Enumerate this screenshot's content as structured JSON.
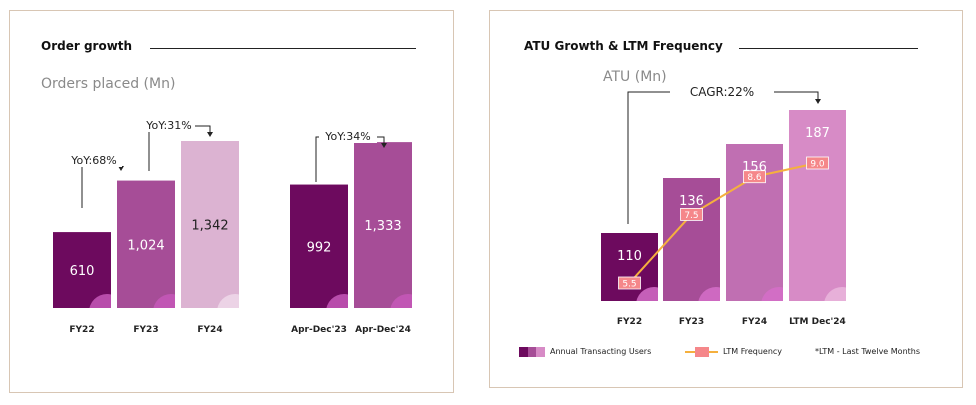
{
  "left_panel": {
    "title": "Order growth",
    "subtitle": "Orders placed (Mn)"
  },
  "right_panel": {
    "title": "ATU Growth & LTM Frequency",
    "subtitle": "ATU (Mn)",
    "legend": {
      "bars_label": "Annual Transacting Users",
      "line_label": "LTM Frequency",
      "note": "*LTM - Last Twelve Months"
    }
  },
  "colors": {
    "dark_purple": "#6d0a5e",
    "mid_purple": "#a64d97",
    "light_pink": "#dcb3d2",
    "atu_fy24": "#c06fb2",
    "atu_ltm": "#d78bc6",
    "line_orange": "#f5b03e",
    "marker_salmon": "#f5878a"
  },
  "chart_data": [
    {
      "type": "bar",
      "title": "Order growth",
      "ylabel": "Orders placed (Mn)",
      "categories": [
        "FY22",
        "FY23",
        "FY24",
        "Apr-Dec'23",
        "Apr-Dec'24"
      ],
      "values": [
        610,
        1024,
        1342,
        992,
        1333
      ],
      "bar_colors": [
        "#6d0a5e",
        "#a64d97",
        "#dcb3d2",
        "#6d0a5e",
        "#a64d97"
      ],
      "value_labels": [
        "610",
        "1,024",
        "1,342",
        "992",
        "1,333"
      ],
      "annotations": [
        "YoY:68%",
        "YoY:31%",
        "YoY:34%"
      ],
      "ylim": [
        0,
        1342
      ]
    },
    {
      "type": "bar",
      "title": "ATU Growth & LTM Frequency",
      "ylabel": "ATU (Mn)",
      "categories": [
        "FY22",
        "FY23",
        "FY24",
        "LTM Dec'24"
      ],
      "series": [
        {
          "name": "Annual Transacting Users",
          "values": [
            110,
            136,
            156,
            187
          ]
        },
        {
          "name": "LTM Frequency",
          "type": "line",
          "values": [
            5.5,
            7.5,
            8.6,
            9.0
          ]
        }
      ],
      "bar_colors": [
        "#6d0a5e",
        "#a64d97",
        "#c06fb2",
        "#d78bc6"
      ],
      "value_labels": [
        "110",
        "136",
        "156",
        "187"
      ],
      "line_labels": [
        "5.5",
        "7.5",
        "8.6",
        "9.0"
      ],
      "annotations": [
        "CAGR:22%"
      ],
      "ylim": [
        0,
        187
      ]
    }
  ]
}
